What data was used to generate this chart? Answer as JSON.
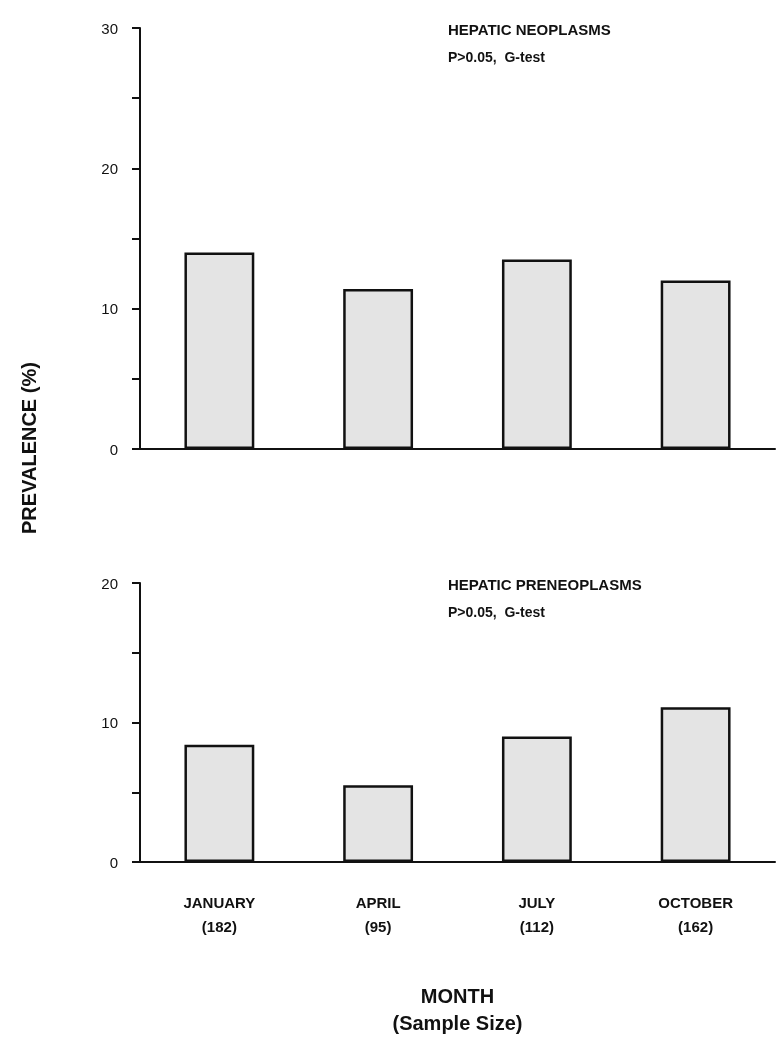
{
  "chart_data": [
    {
      "type": "bar",
      "title": "HEPATIC NEOPLASMS",
      "annotations": [
        "P>0.05,  G-test"
      ],
      "ylabel": "PREVALENCE (%)",
      "categories": [
        null,
        null,
        null,
        null
      ],
      "values": [
        14.0,
        11.4,
        13.5,
        12.0
      ],
      "color": "#e4e4e4",
      "ylim": [
        0,
        30
      ],
      "yticks": [
        0,
        {
          "value": 5,
          "label": null
        },
        10,
        {
          "value": 15,
          "label": null
        },
        20,
        {
          "value": 25,
          "label": null
        },
        30
      ],
      "tick_labels": "y",
      "grid": false
    },
    {
      "type": "bar",
      "title": "HEPATIC PRENEOPLASMS",
      "annotations": [
        "P>0.05,  G-test"
      ],
      "xlabel": "MONTH\n(Sample Size)",
      "categories": [
        "JANUARY\n(182)",
        "APRIL\n(95)",
        "JULY\n(112)",
        "OCTOBER\n(162)"
      ],
      "values": [
        8.4,
        5.5,
        9.0,
        11.1
      ],
      "color": "#e4e4e4",
      "ylim": [
        0,
        20
      ],
      "yticks": [
        0,
        {
          "value": 5,
          "label": null
        },
        10,
        {
          "value": 15,
          "label": null
        },
        20
      ],
      "grid": false
    }
  ]
}
